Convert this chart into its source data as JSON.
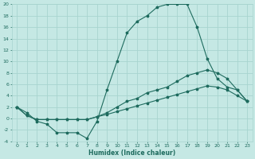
{
  "xlabel": "Humidex (Indice chaleur)",
  "ylabel": "",
  "xlim": [
    -0.5,
    23.5
  ],
  "ylim": [
    -4,
    20
  ],
  "xticks": [
    0,
    1,
    2,
    3,
    4,
    5,
    6,
    7,
    8,
    9,
    10,
    11,
    12,
    13,
    14,
    15,
    16,
    17,
    18,
    19,
    20,
    21,
    22,
    23
  ],
  "yticks": [
    -4,
    -2,
    0,
    2,
    4,
    6,
    8,
    10,
    12,
    14,
    16,
    18,
    20
  ],
  "background_color": "#c5e8e4",
  "grid_color": "#a8d4cf",
  "line_color": "#1e6b5e",
  "line1_y": [
    2.0,
    1.0,
    -0.5,
    -1.0,
    -2.5,
    -2.5,
    -2.5,
    -3.5,
    -0.5,
    5.0,
    10.0,
    15.0,
    17.0,
    18.0,
    19.5,
    20.0,
    20.0,
    20.0,
    16.0,
    10.5,
    7.0,
    5.5,
    5.0,
    3.0
  ],
  "line2_y": [
    2.0,
    0.5,
    -0.2,
    -0.2,
    -0.2,
    -0.2,
    -0.2,
    -0.2,
    0.3,
    1.0,
    2.0,
    3.0,
    3.5,
    4.5,
    5.0,
    5.5,
    6.5,
    7.5,
    8.0,
    8.5,
    8.0,
    7.0,
    5.0,
    3.0
  ],
  "line3_y": [
    2.0,
    0.5,
    -0.2,
    -0.2,
    -0.2,
    -0.2,
    -0.2,
    -0.2,
    0.3,
    0.7,
    1.2,
    1.7,
    2.2,
    2.7,
    3.2,
    3.7,
    4.2,
    4.7,
    5.2,
    5.7,
    5.5,
    5.0,
    4.0,
    3.0
  ]
}
